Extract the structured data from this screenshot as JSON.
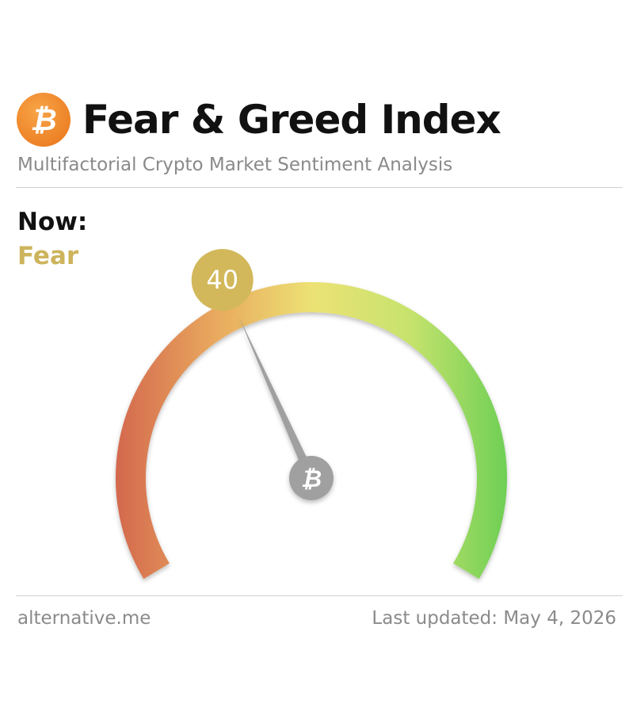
{
  "header": {
    "title": "Fear & Greed Index",
    "subtitle": "Multifactorial Crypto Market Sentiment Analysis",
    "logo_icon": "bitcoin-icon",
    "logo_color": "#f0892d"
  },
  "now": {
    "label": "Now:",
    "classification": "Fear",
    "classification_color": "#cdb45c"
  },
  "chart_data": {
    "type": "gauge",
    "value": 40,
    "value_label": "40",
    "min": 0,
    "max": 100,
    "scale_colors": [
      "#d46a4e",
      "#e9a95e",
      "#ece274",
      "#c6e36d",
      "#6fcf55"
    ],
    "value_badge_color": "#d2b85a",
    "needle_color": "#a0a0a0",
    "hub_icon": "bitcoin-icon"
  },
  "footer": {
    "source": "alternative.me",
    "updated": "Last updated: May 4, 2026"
  }
}
